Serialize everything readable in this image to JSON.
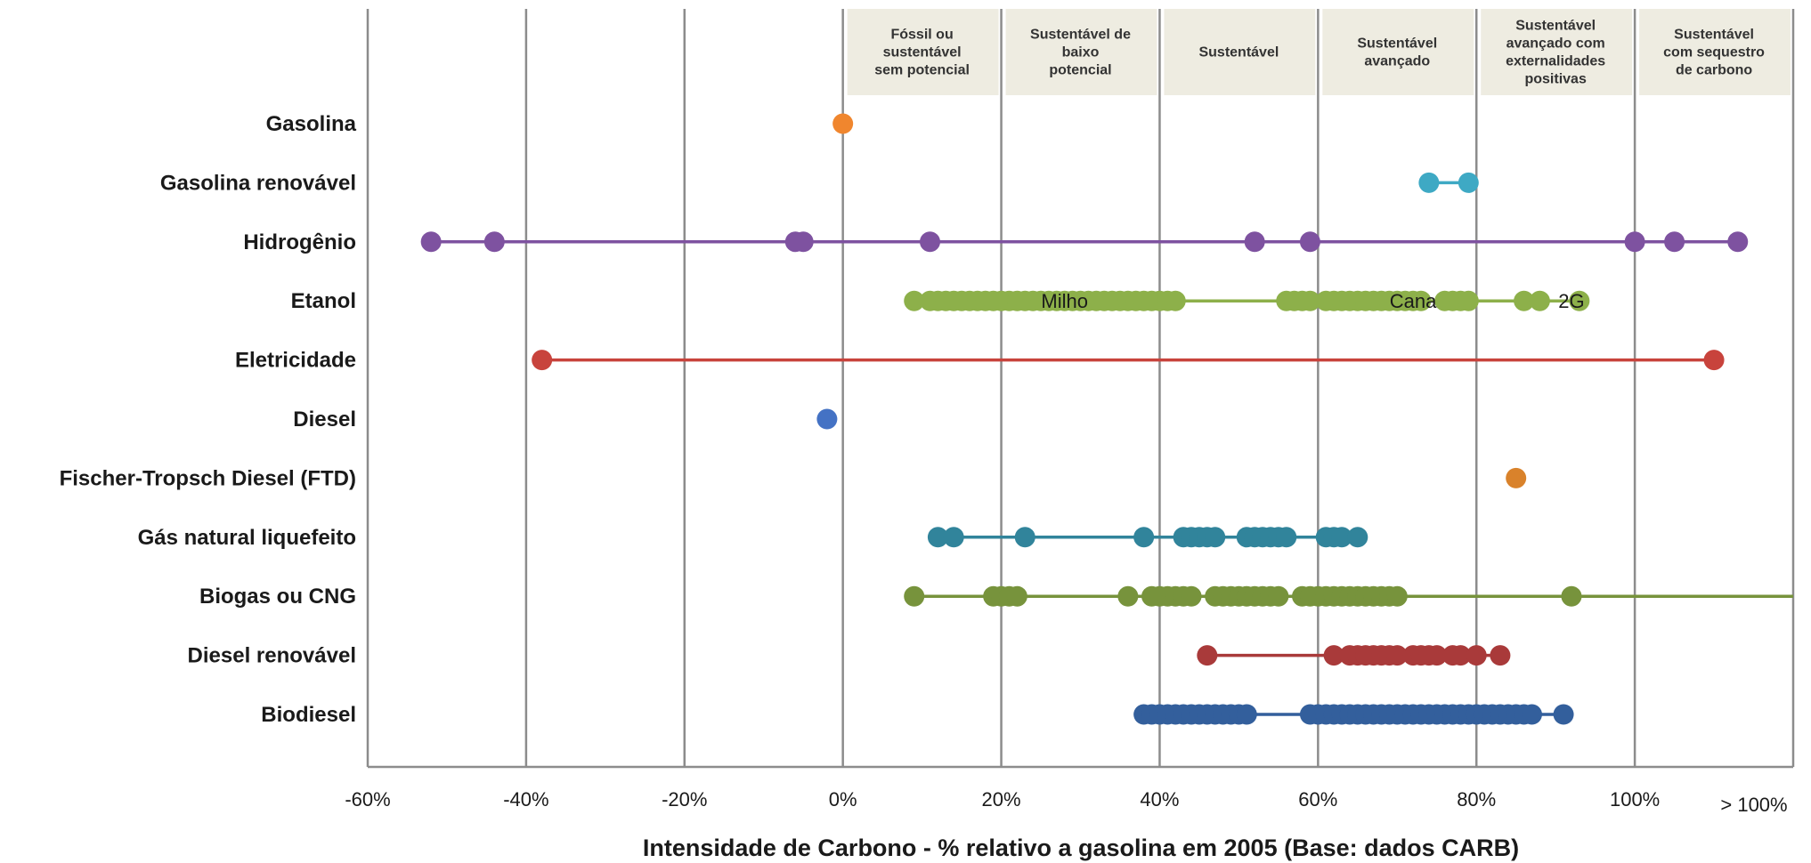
{
  "chart_data": {
    "type": "scatter",
    "title": "",
    "xlabel": "Intensidade de Carbono -  % relativo a gasolina em 2005 (Base: dados CARB)",
    "ylabel": "",
    "xlim": [
      -60,
      120
    ],
    "x_ticks": [
      {
        "value": -60,
        "label": "-60%"
      },
      {
        "value": -40,
        "label": "-40%"
      },
      {
        "value": -20,
        "label": "-20%"
      },
      {
        "value": 0,
        "label": "0%"
      },
      {
        "value": 20,
        "label": "20%"
      },
      {
        "value": 40,
        "label": "40%"
      },
      {
        "value": 60,
        "label": "60%"
      },
      {
        "value": 80,
        "label": "80%"
      },
      {
        "value": 100,
        "label": "100%"
      }
    ],
    "x_overflow_label": "> 100%",
    "grid": true,
    "bands": [
      {
        "from": 0,
        "to": 20,
        "label": [
          "Fóssil ou",
          "sustentável",
          "sem potencial"
        ]
      },
      {
        "from": 20,
        "to": 40,
        "label": [
          "Sustentável de",
          "baixo",
          "potencial"
        ]
      },
      {
        "from": 40,
        "to": 60,
        "label": [
          "Sustentável"
        ]
      },
      {
        "from": 60,
        "to": 80,
        "label": [
          "Sustentável",
          "avançado"
        ]
      },
      {
        "from": 80,
        "to": 100,
        "label": [
          "Sustentável",
          "avançado com",
          "externalidades",
          "positivas"
        ]
      },
      {
        "from": 100,
        "to": 120,
        "label": [
          "Sustentável",
          "com sequestro",
          "de carbono"
        ]
      }
    ],
    "series": [
      {
        "name": "Gasolina",
        "color": "#f0862e",
        "line": false,
        "x": [
          0
        ]
      },
      {
        "name": "Gasolina renovável",
        "color": "#3ea9c4",
        "line": true,
        "x": [
          74,
          79
        ]
      },
      {
        "name": "Hidrogênio",
        "color": "#7e52a0",
        "line": true,
        "x": [
          -52,
          -44,
          -6,
          -5,
          11,
          52,
          59,
          100,
          105,
          113
        ]
      },
      {
        "name": "Etanol",
        "color": "#8db04a",
        "line": true,
        "x": [
          9,
          11,
          12,
          13,
          14,
          15,
          16,
          17,
          18,
          19,
          20,
          21,
          22,
          23,
          24,
          25,
          26,
          27,
          28,
          29,
          30,
          31,
          32,
          33,
          34,
          35,
          36,
          37,
          38,
          39,
          40,
          41,
          42,
          56,
          57,
          58,
          59,
          61,
          62,
          63,
          64,
          65,
          66,
          67,
          68,
          69,
          70,
          71,
          72,
          73,
          76,
          77,
          78,
          79,
          86,
          88,
          93
        ]
      },
      {
        "name": "Eletricidade",
        "color": "#c8433c",
        "line": true,
        "x": [
          -38,
          110
        ]
      },
      {
        "name": "Diesel",
        "color": "#4472c4",
        "line": false,
        "x": [
          -2
        ]
      },
      {
        "name": "Fischer-Tropsch Diesel (FTD)",
        "color": "#d9822b",
        "line": false,
        "x": [
          85
        ]
      },
      {
        "name": "Gás natural liquefeito",
        "color": "#31849b",
        "line": true,
        "x": [
          12,
          14,
          23,
          38,
          43,
          44,
          45,
          46,
          47,
          51,
          52,
          53,
          54,
          55,
          56,
          61,
          62,
          63,
          65
        ]
      },
      {
        "name": "Biogas ou CNG",
        "color": "#77933c",
        "line": true,
        "line_to": 120,
        "x": [
          9,
          19,
          20,
          21,
          22,
          36,
          39,
          40,
          41,
          42,
          43,
          44,
          47,
          48,
          49,
          50,
          51,
          52,
          53,
          54,
          55,
          58,
          59,
          60,
          61,
          62,
          63,
          64,
          65,
          66,
          67,
          68,
          69,
          70,
          92
        ]
      },
      {
        "name": "Diesel renovável",
        "color": "#a93a3a",
        "line": true,
        "x": [
          46,
          62,
          64,
          65,
          66,
          67,
          68,
          69,
          70,
          72,
          73,
          74,
          75,
          77,
          78,
          80,
          83
        ]
      },
      {
        "name": "Biodiesel",
        "color": "#335f9c",
        "line": true,
        "x": [
          38,
          39,
          40,
          41,
          42,
          43,
          44,
          45,
          46,
          47,
          48,
          49,
          50,
          51,
          59,
          60,
          61,
          62,
          63,
          64,
          65,
          66,
          67,
          68,
          69,
          70,
          71,
          72,
          73,
          74,
          75,
          76,
          77,
          78,
          79,
          80,
          81,
          82,
          83,
          84,
          85,
          86,
          87,
          91
        ]
      }
    ],
    "annotations": [
      {
        "series": "Etanol",
        "text": "Milho",
        "x": 28
      },
      {
        "series": "Etanol",
        "text": "Cana",
        "x": 72
      },
      {
        "series": "Etanol",
        "text": "2G",
        "x": 92
      }
    ]
  }
}
